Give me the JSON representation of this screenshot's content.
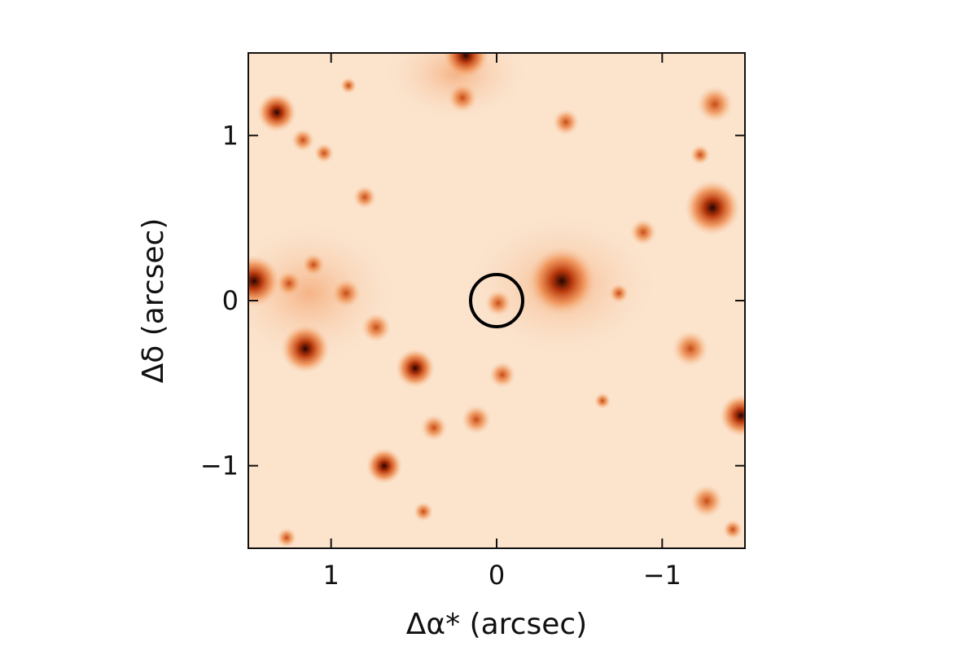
{
  "chart_data": {
    "type": "image",
    "xlabel": "Δα* (arcsec)",
    "ylabel": "Δδ (arcsec)",
    "xlim": [
      1.5,
      -1.5
    ],
    "ylim": [
      -1.5,
      1.5
    ],
    "xticks": [
      1,
      0,
      {
        "value": -1,
        "label": "−1"
      }
    ],
    "yticks": [
      {
        "value": -1,
        "label": "−1"
      },
      0,
      1
    ],
    "marker": {
      "x": 0,
      "y": 0,
      "color": "#000000"
    }
  }
}
